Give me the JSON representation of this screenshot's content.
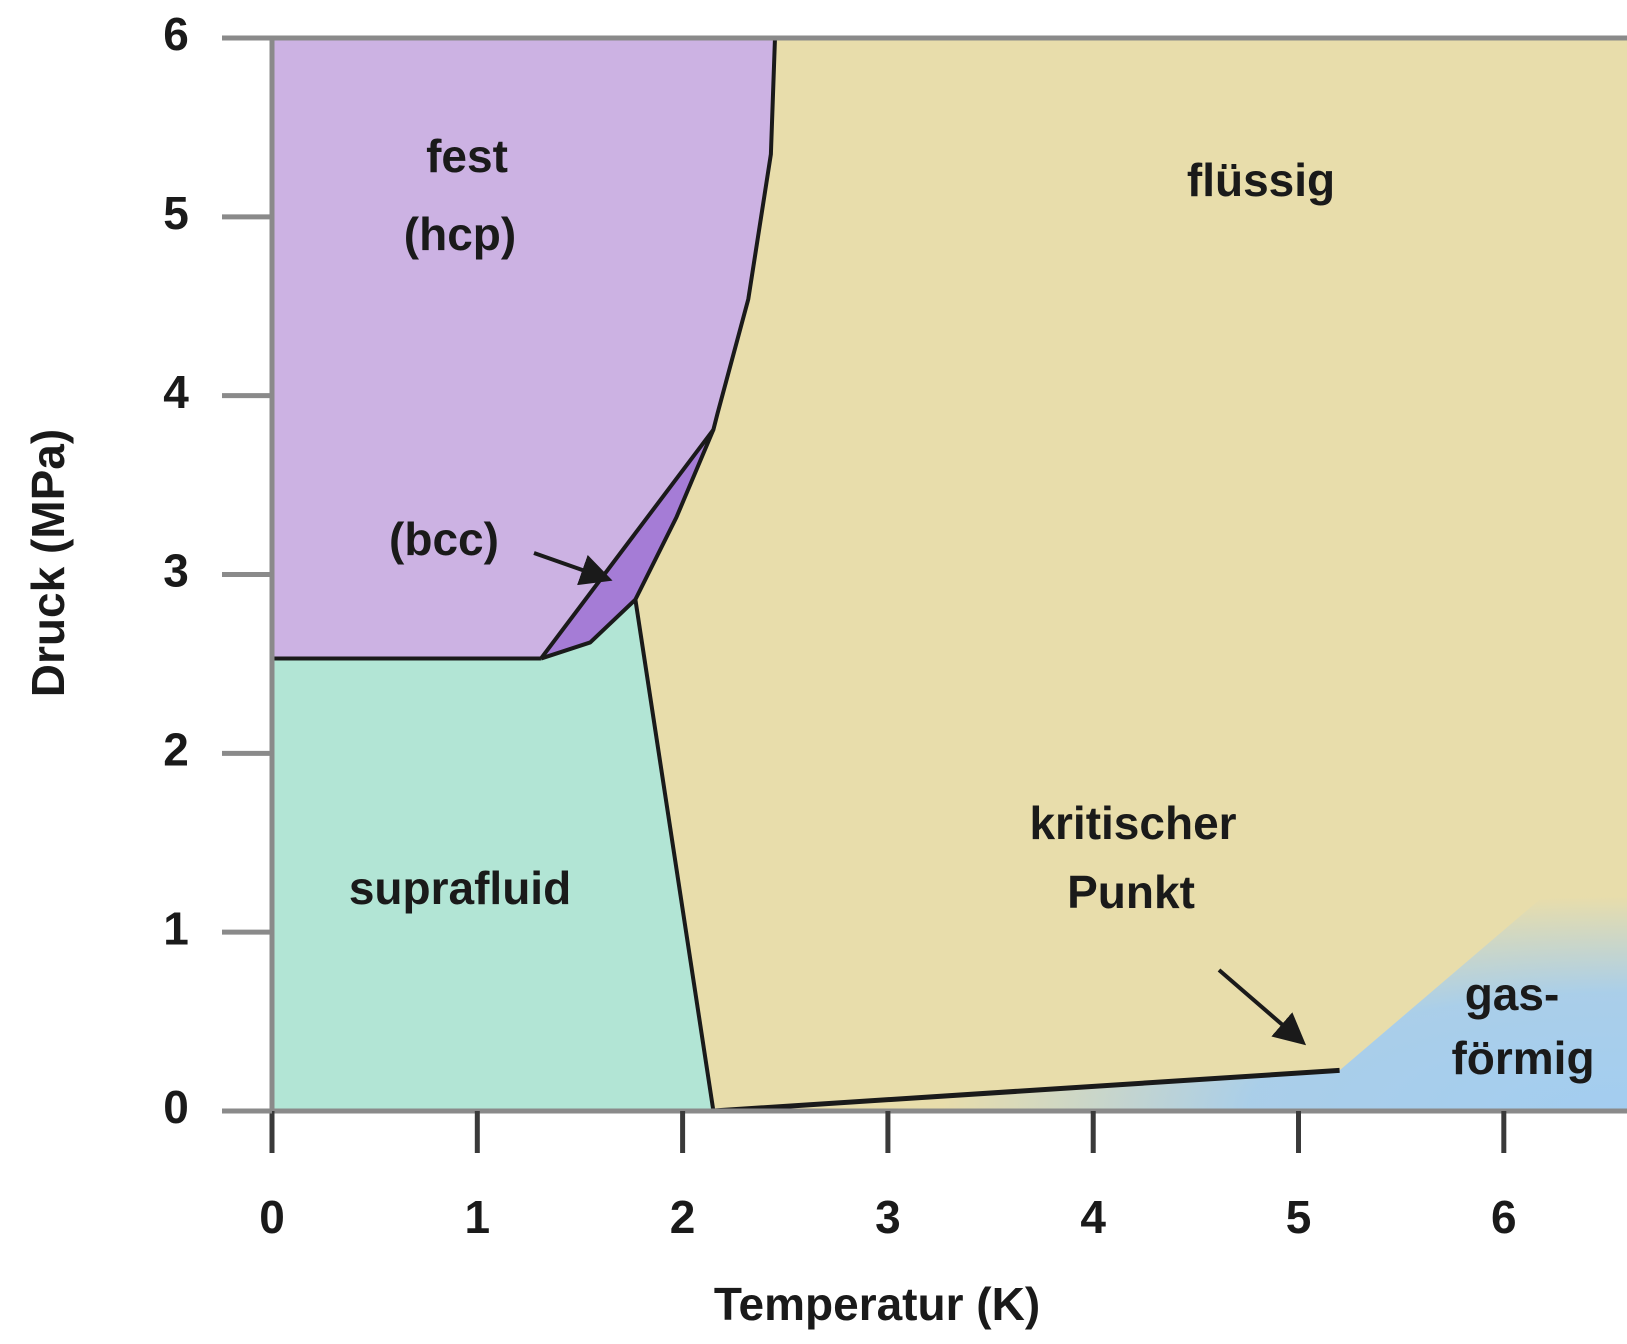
{
  "chart_data": {
    "type": "phase",
    "xlabel": "Temperatur (K)",
    "ylabel": "Druck (MPa)",
    "xlim": [
      0,
      6.6
    ],
    "ylim": [
      0,
      6
    ],
    "xticks": [
      0,
      1,
      2,
      3,
      4,
      5,
      6
    ],
    "yticks": [
      0,
      1,
      2,
      3,
      4,
      5,
      6
    ],
    "regions": [
      {
        "label": [
          "flüssig"
        ],
        "color": "#e8ddab",
        "x": [
          1.77,
          1.97,
          2.15,
          2.17,
          2.32,
          2.43,
          2.45,
          6.6,
          6.6,
          2.15
        ],
        "y": [
          2.86,
          3.32,
          3.81,
          3.9,
          4.54,
          5.35,
          6,
          6,
          0,
          0
        ]
      },
      {
        "label": [
          "fest",
          "(hcp)"
        ],
        "color": "#ccb2e3",
        "x": [
          0,
          1.31,
          2.15,
          2.17,
          2.32,
          2.43,
          2.45,
          0
        ],
        "y": [
          2.53,
          2.53,
          3.81,
          3.9,
          4.54,
          5.35,
          6,
          6
        ]
      },
      {
        "label": [
          "(bcc)"
        ],
        "color": "#a57cd6",
        "x": [
          1.31,
          1.55,
          1.77,
          1.97,
          2.15
        ],
        "y": [
          2.53,
          2.62,
          2.86,
          3.32,
          3.81
        ]
      },
      {
        "label": [
          "suprafluid"
        ],
        "color": "#b2e5d5",
        "x": [
          0,
          1.31,
          1.55,
          1.77,
          2.15,
          0
        ],
        "y": [
          2.53,
          2.53,
          2.62,
          2.86,
          0,
          0
        ]
      },
      {
        "label": [
          "gas-",
          "förmig"
        ],
        "color": "#a3cdf0",
        "x": [
          2.15,
          5.2,
          6.6,
          6.6
        ],
        "y": [
          0,
          0.227,
          1.6,
          0
        ]
      }
    ],
    "lines": [
      {
        "x": [
          0,
          1.31
        ],
        "y": [
          2.53,
          2.53
        ]
      },
      {
        "x": [
          1.31,
          2.15,
          2.17,
          2.32,
          2.43,
          2.45
        ],
        "y": [
          2.53,
          3.81,
          3.9,
          4.54,
          5.35,
          6
        ]
      },
      {
        "x": [
          1.31,
          1.55,
          1.77,
          1.97,
          2.15
        ],
        "y": [
          2.53,
          2.62,
          2.86,
          3.32,
          3.81
        ]
      },
      {
        "x": [
          1.77,
          2.15
        ],
        "y": [
          2.86,
          0
        ]
      },
      {
        "x": [
          2.15,
          5.2
        ],
        "y": [
          0,
          0.227
        ]
      }
    ],
    "critical_point": {
      "label": [
        "kritischer",
        "Punkt"
      ]
    }
  }
}
